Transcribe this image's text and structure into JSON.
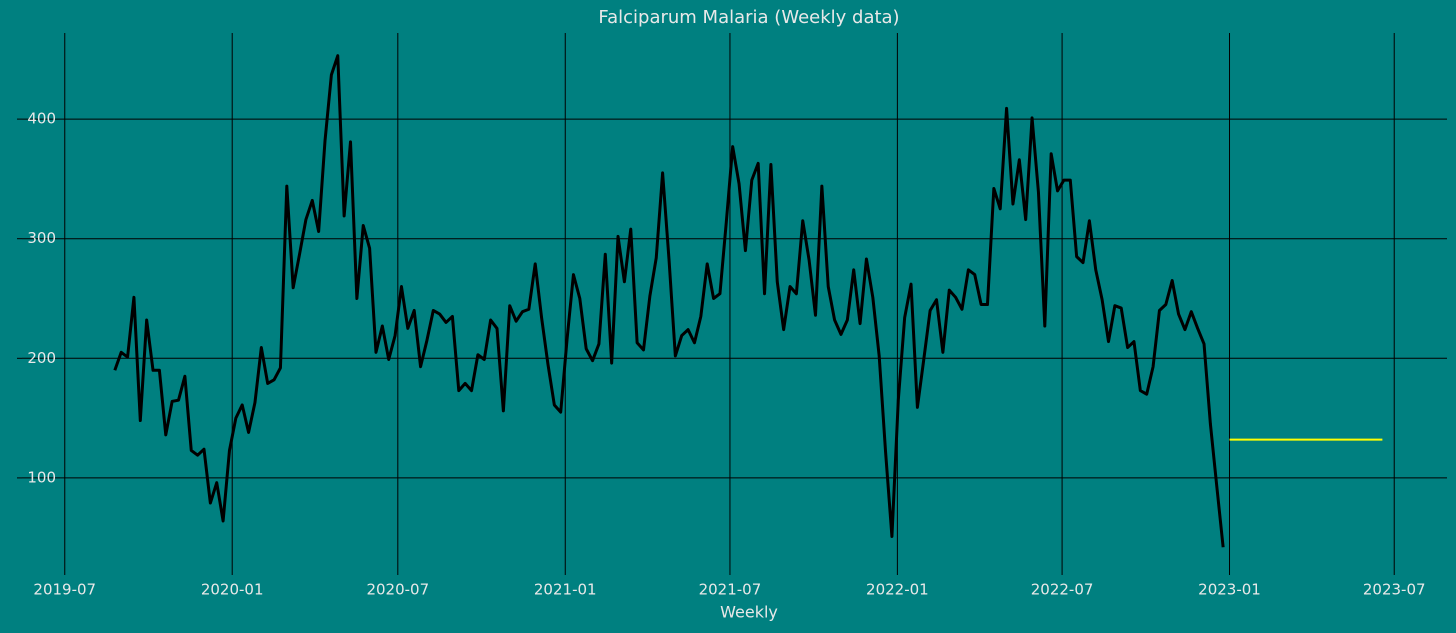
{
  "chart_data": {
    "type": "line",
    "title": "Falciparum Malaria (Weekly data)",
    "x_label": "Weekly",
    "background": "#008080",
    "grid": true,
    "grid_color": "#000000",
    "xlim": [
      "2019-05-15",
      "2023-08-28"
    ],
    "xticks": [
      "2019-07",
      "2020-01",
      "2020-07",
      "2021-01",
      "2021-07",
      "2022-01",
      "2022-07",
      "2023-01",
      "2023-07"
    ],
    "ylim": [
      23,
      472
    ],
    "yticks": [
      100,
      200,
      300,
      400
    ],
    "series": [
      {
        "color": "#000000",
        "x": [
          "2019-08-25",
          "2019-09-01",
          "2019-09-08",
          "2019-09-15",
          "2019-09-22",
          "2019-09-29",
          "2019-10-06",
          "2019-10-13",
          "2019-10-20",
          "2019-10-27",
          "2019-11-03",
          "2019-11-10",
          "2019-11-17",
          "2019-11-24",
          "2019-12-01",
          "2019-12-08",
          "2019-12-15",
          "2019-12-22",
          "2019-12-29",
          "2020-01-05",
          "2020-01-12",
          "2020-01-19",
          "2020-01-26",
          "2020-02-02",
          "2020-02-09",
          "2020-02-16",
          "2020-02-23",
          "2020-03-01",
          "2020-03-08",
          "2020-03-15",
          "2020-03-22",
          "2020-03-29",
          "2020-04-05",
          "2020-04-12",
          "2020-04-19",
          "2020-04-26",
          "2020-05-03",
          "2020-05-10",
          "2020-05-17",
          "2020-05-24",
          "2020-05-31",
          "2020-06-07",
          "2020-06-14",
          "2020-06-21",
          "2020-06-28",
          "2020-07-05",
          "2020-07-12",
          "2020-07-19",
          "2020-07-26",
          "2020-08-02",
          "2020-08-09",
          "2020-08-16",
          "2020-08-23",
          "2020-08-30",
          "2020-09-06",
          "2020-09-13",
          "2020-09-20",
          "2020-09-27",
          "2020-10-04",
          "2020-10-11",
          "2020-10-18",
          "2020-10-25",
          "2020-11-01",
          "2020-11-08",
          "2020-11-15",
          "2020-11-22",
          "2020-11-29",
          "2020-12-06",
          "2020-12-13",
          "2020-12-20",
          "2020-12-27",
          "2021-01-03",
          "2021-01-10",
          "2021-01-17",
          "2021-01-24",
          "2021-01-31",
          "2021-02-07",
          "2021-02-14",
          "2021-02-21",
          "2021-02-28",
          "2021-03-07",
          "2021-03-14",
          "2021-03-21",
          "2021-03-28",
          "2021-04-04",
          "2021-04-11",
          "2021-04-18",
          "2021-04-25",
          "2021-05-02",
          "2021-05-09",
          "2021-05-16",
          "2021-05-23",
          "2021-05-30",
          "2021-06-06",
          "2021-06-13",
          "2021-06-20",
          "2021-06-27",
          "2021-07-04",
          "2021-07-11",
          "2021-07-18",
          "2021-07-25",
          "2021-08-01",
          "2021-08-08",
          "2021-08-15",
          "2021-08-22",
          "2021-08-29",
          "2021-09-05",
          "2021-09-12",
          "2021-09-19",
          "2021-09-26",
          "2021-10-03",
          "2021-10-10",
          "2021-10-17",
          "2021-10-24",
          "2021-10-31",
          "2021-11-07",
          "2021-11-14",
          "2021-11-21",
          "2021-11-28",
          "2021-12-05",
          "2021-12-12",
          "2021-12-19",
          "2021-12-26",
          "2022-01-02",
          "2022-01-09",
          "2022-01-16",
          "2022-01-23",
          "2022-01-30",
          "2022-02-06",
          "2022-02-13",
          "2022-02-20",
          "2022-02-27",
          "2022-03-06",
          "2022-03-13",
          "2022-03-20",
          "2022-03-27",
          "2022-04-03",
          "2022-04-10",
          "2022-04-17",
          "2022-04-24",
          "2022-05-01",
          "2022-05-08",
          "2022-05-15",
          "2022-05-22",
          "2022-05-29",
          "2022-06-05",
          "2022-06-12",
          "2022-06-19",
          "2022-06-26",
          "2022-07-03",
          "2022-07-10",
          "2022-07-17",
          "2022-07-24",
          "2022-07-31",
          "2022-08-07",
          "2022-08-14",
          "2022-08-21",
          "2022-08-28",
          "2022-09-04",
          "2022-09-11",
          "2022-09-18",
          "2022-09-25",
          "2022-10-02",
          "2022-10-09",
          "2022-10-16",
          "2022-10-23",
          "2022-10-30",
          "2022-11-06",
          "2022-11-13",
          "2022-11-20",
          "2022-11-27",
          "2022-12-04",
          "2022-12-11",
          "2022-12-18",
          "2022-12-25"
        ],
        "values": [
          190,
          205,
          201,
          251,
          148,
          232,
          190,
          190,
          136,
          164,
          165,
          185,
          123,
          119,
          124,
          79,
          96,
          64,
          123,
          150,
          161,
          138,
          163,
          209,
          179,
          182,
          192,
          344,
          259,
          287,
          316,
          332,
          306,
          382,
          437,
          453,
          319,
          381,
          250,
          311,
          292,
          205,
          227,
          199,
          219,
          260,
          225,
          240,
          193,
          215,
          240,
          237,
          230,
          235,
          173,
          179,
          173,
          203,
          199,
          232,
          225,
          156,
          244,
          231,
          239,
          241,
          279,
          234,
          195,
          161,
          155,
          216,
          270,
          250,
          208,
          198,
          212,
          287,
          196,
          302,
          264,
          308,
          213,
          207,
          252,
          284,
          355,
          283,
          202,
          219,
          224,
          213,
          235,
          279,
          250,
          254,
          314,
          377,
          346,
          290,
          349,
          363,
          254,
          362,
          264,
          224,
          260,
          254,
          315,
          282,
          236,
          344,
          260,
          232,
          220,
          232,
          274,
          229,
          283,
          251,
          202,
          122,
          51,
          165,
          234,
          262,
          159,
          199,
          240,
          249,
          205,
          257,
          251,
          241,
          274,
          270,
          245,
          245,
          342,
          325,
          409,
          329,
          366,
          316,
          401,
          339,
          227,
          371,
          340,
          349,
          349,
          285,
          280,
          315,
          274,
          249,
          214,
          244,
          242,
          209,
          214,
          173,
          170,
          193,
          240,
          245,
          265,
          237,
          224,
          239,
          225,
          212,
          145,
          93,
          42
        ]
      },
      {
        "color": "#ffff00",
        "x": [
          "2023-01-01",
          "2023-06-18"
        ],
        "values": [
          132,
          132
        ]
      }
    ]
  }
}
